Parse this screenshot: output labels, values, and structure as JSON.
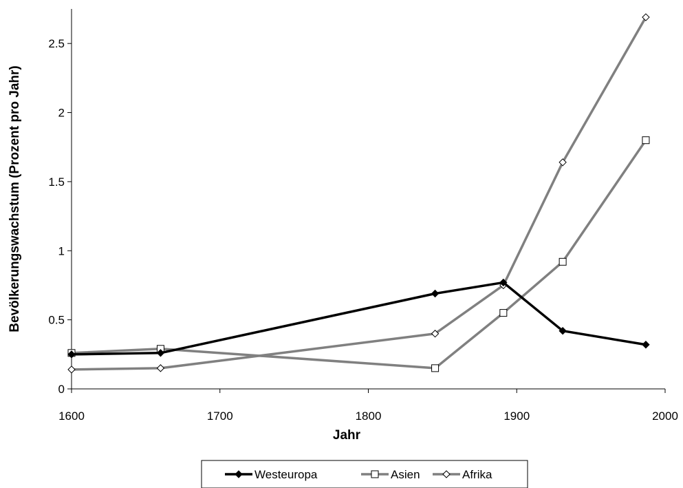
{
  "chart_data": {
    "type": "line",
    "title": "",
    "xlabel": "Jahr",
    "ylabel": "Bevölkerungswachstum (Prozent pro Jahr)",
    "xlim": [
      1600,
      2000
    ],
    "ylim": [
      0,
      2.75
    ],
    "xticks": [
      1600,
      1700,
      1800,
      1900,
      2000
    ],
    "xtick_labels": [
      "1600",
      "1700",
      "1800",
      "1900",
      "2000"
    ],
    "yticks": [
      0,
      0.5,
      1,
      1.5,
      2,
      2.5
    ],
    "ytick_labels": [
      "0",
      "0.5",
      "1",
      "1.5",
      "2",
      "2.5"
    ],
    "grid": false,
    "legend_position": "bottom",
    "series": [
      {
        "name": "Westeuropa",
        "color": "#000000",
        "marker": "filled-diamond",
        "points": [
          [
            1600,
            0.25
          ],
          [
            1660,
            0.26
          ],
          [
            1845,
            0.69
          ],
          [
            1891,
            0.77
          ],
          [
            1931,
            0.42
          ],
          [
            1987,
            0.32
          ]
        ]
      },
      {
        "name": "Asien",
        "color": "#808080",
        "marker": "open-square",
        "points": [
          [
            1600,
            0.26
          ],
          [
            1660,
            0.29
          ],
          [
            1845,
            0.15
          ],
          [
            1891,
            0.55
          ],
          [
            1931,
            0.92
          ],
          [
            1987,
            1.8
          ]
        ]
      },
      {
        "name": "Afrika",
        "color": "#808080",
        "marker": "open-diamond",
        "points": [
          [
            1600,
            0.14
          ],
          [
            1660,
            0.15
          ],
          [
            1845,
            0.4
          ],
          [
            1891,
            0.75
          ],
          [
            1931,
            1.64
          ],
          [
            1987,
            2.69
          ]
        ]
      }
    ]
  }
}
